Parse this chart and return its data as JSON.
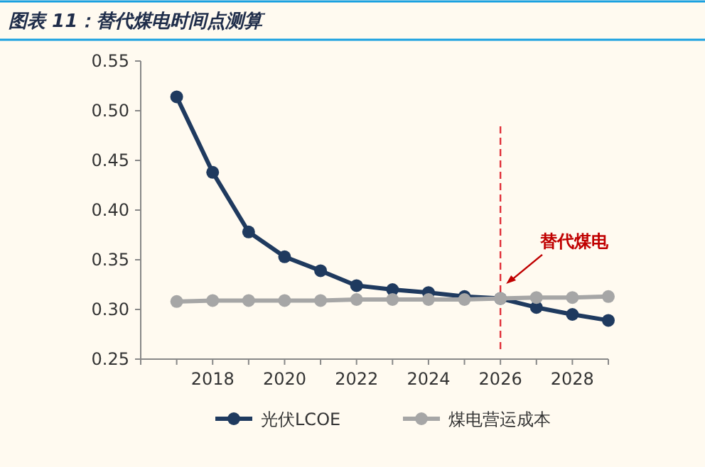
{
  "chart_data": {
    "type": "line",
    "title": "图表 11：替代煤电时间点测算",
    "x": [
      2017,
      2018,
      2019,
      2020,
      2021,
      2022,
      2023,
      2024,
      2025,
      2026,
      2027,
      2028,
      2029
    ],
    "series": [
      {
        "name": "光伏LCOE",
        "color": "#1f3a5f",
        "values": [
          0.514,
          0.438,
          0.378,
          0.353,
          0.339,
          0.324,
          0.32,
          0.317,
          0.313,
          0.311,
          0.302,
          0.295,
          0.289
        ]
      },
      {
        "name": "煤电营运成本",
        "color": "#a6a6a6",
        "values": [
          0.308,
          0.309,
          0.309,
          0.309,
          0.309,
          0.31,
          0.31,
          0.31,
          0.31,
          0.311,
          0.312,
          0.312,
          0.313
        ]
      }
    ],
    "xlim": [
      2016,
      2029
    ],
    "xticks": [
      {
        "value": 2017,
        "label": null
      },
      2018,
      {
        "value": 2019,
        "label": null
      },
      2020,
      {
        "value": 2021,
        "label": null
      },
      2022,
      {
        "value": 2023,
        "label": null
      },
      2024,
      {
        "value": 2025,
        "label": null
      },
      2026,
      {
        "value": 2027,
        "label": null
      },
      2028,
      {
        "value": 2029,
        "label": null
      }
    ],
    "ylim": [
      0.25,
      0.55
    ],
    "yticks": [
      {
        "value": 0.25,
        "label": "0.25"
      },
      {
        "value": 0.3,
        "label": "0.30"
      },
      {
        "value": 0.35,
        "label": "0.35"
      },
      {
        "value": 0.4,
        "label": "0.40"
      },
      {
        "value": 0.45,
        "label": "0.45"
      },
      {
        "value": 0.5,
        "label": "0.50"
      },
      {
        "value": 0.55,
        "label": "0.55"
      }
    ],
    "ref_lines": [
      {
        "axis": "x",
        "value": 2026,
        "color": "#e0303a",
        "line_style": "dashed"
      }
    ],
    "annotations": [
      "替代煤电"
    ],
    "marker": "circle",
    "line_style": "solid",
    "grid": false,
    "legend": "bottom"
  }
}
